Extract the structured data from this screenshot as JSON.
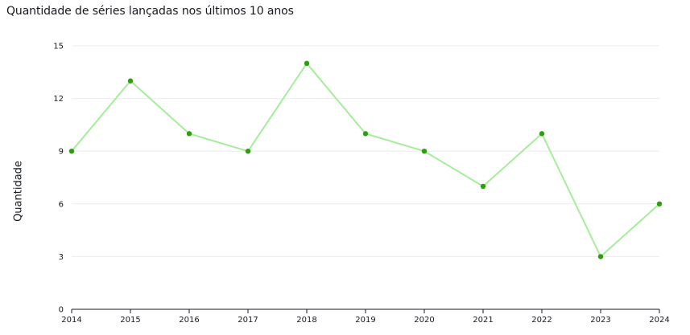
{
  "chart_data": {
    "type": "line",
    "title": "Quantidade de séries lançadas nos últimos 10 anos",
    "xlabel": "",
    "ylabel": "Quantidade",
    "x": [
      "2014",
      "2015",
      "2016",
      "2017",
      "2018",
      "2019",
      "2020",
      "2021",
      "2022",
      "2023",
      "2024"
    ],
    "series": [
      {
        "values": [
          9,
          13,
          10,
          9,
          14,
          10,
          9,
          7,
          10,
          3,
          6
        ]
      }
    ],
    "ylim": [
      0,
      15
    ],
    "yticks": [
      "0",
      "3",
      "6",
      "9",
      "12",
      "15"
    ],
    "grid": true,
    "legend": "none",
    "colors": {
      "line": "#a6ed9b",
      "marker": "#2ca00c",
      "grid": "#e9ebed",
      "axis": "#16191f"
    }
  }
}
